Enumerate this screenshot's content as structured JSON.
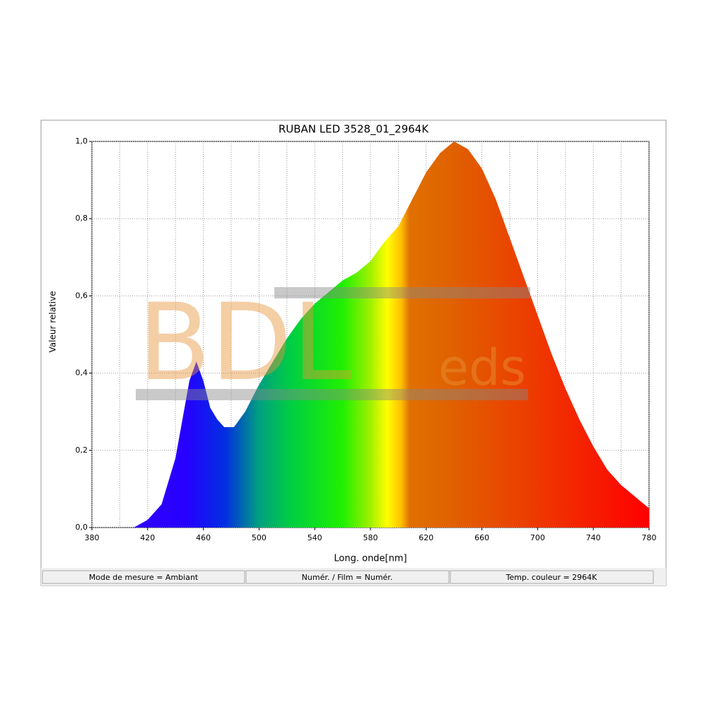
{
  "chart_data": {
    "type": "area",
    "title": "RUBAN LED 3528_01_2964K",
    "x_label": "Long. onde[nm]",
    "y_label": "Valeur relative",
    "watermark": [
      "BDL",
      "eds"
    ],
    "x": [
      410,
      420,
      430,
      440,
      445,
      450,
      455,
      460,
      465,
      470,
      475,
      482,
      490,
      500,
      510,
      520,
      530,
      540,
      550,
      560,
      570,
      580,
      590,
      600,
      610,
      620,
      630,
      640,
      650,
      660,
      670,
      680,
      690,
      700,
      710,
      720,
      730,
      740,
      750,
      760,
      770,
      780
    ],
    "values": [
      0,
      0.02,
      0.06,
      0.18,
      0.28,
      0.38,
      0.43,
      0.38,
      0.31,
      0.28,
      0.26,
      0.26,
      0.3,
      0.37,
      0.43,
      0.49,
      0.54,
      0.58,
      0.61,
      0.64,
      0.66,
      0.69,
      0.74,
      0.78,
      0.85,
      0.92,
      0.97,
      1.0,
      0.98,
      0.93,
      0.85,
      0.75,
      0.65,
      0.55,
      0.45,
      0.36,
      0.28,
      0.21,
      0.15,
      0.11,
      0.08,
      0.05
    ],
    "xlim": [
      380,
      780
    ],
    "xticks": [
      380,
      420,
      460,
      500,
      540,
      580,
      620,
      660,
      700,
      740,
      780
    ],
    "ylim": [
      0,
      1
    ],
    "yticks": [
      {
        "value": 0,
        "label": "0,0"
      },
      {
        "value": 0.2,
        "label": "0,2"
      },
      {
        "value": 0.4,
        "label": "0,4"
      },
      {
        "value": 0.6,
        "label": "0,6"
      },
      {
        "value": 0.8,
        "label": "0,8"
      },
      {
        "value": 1,
        "label": "1,0"
      }
    ],
    "grid": true,
    "status_bar": [
      "Mode de mesure = Ambiant",
      "Numér. / Film = Numér.",
      "Temp. couleur = 2964K"
    ]
  }
}
